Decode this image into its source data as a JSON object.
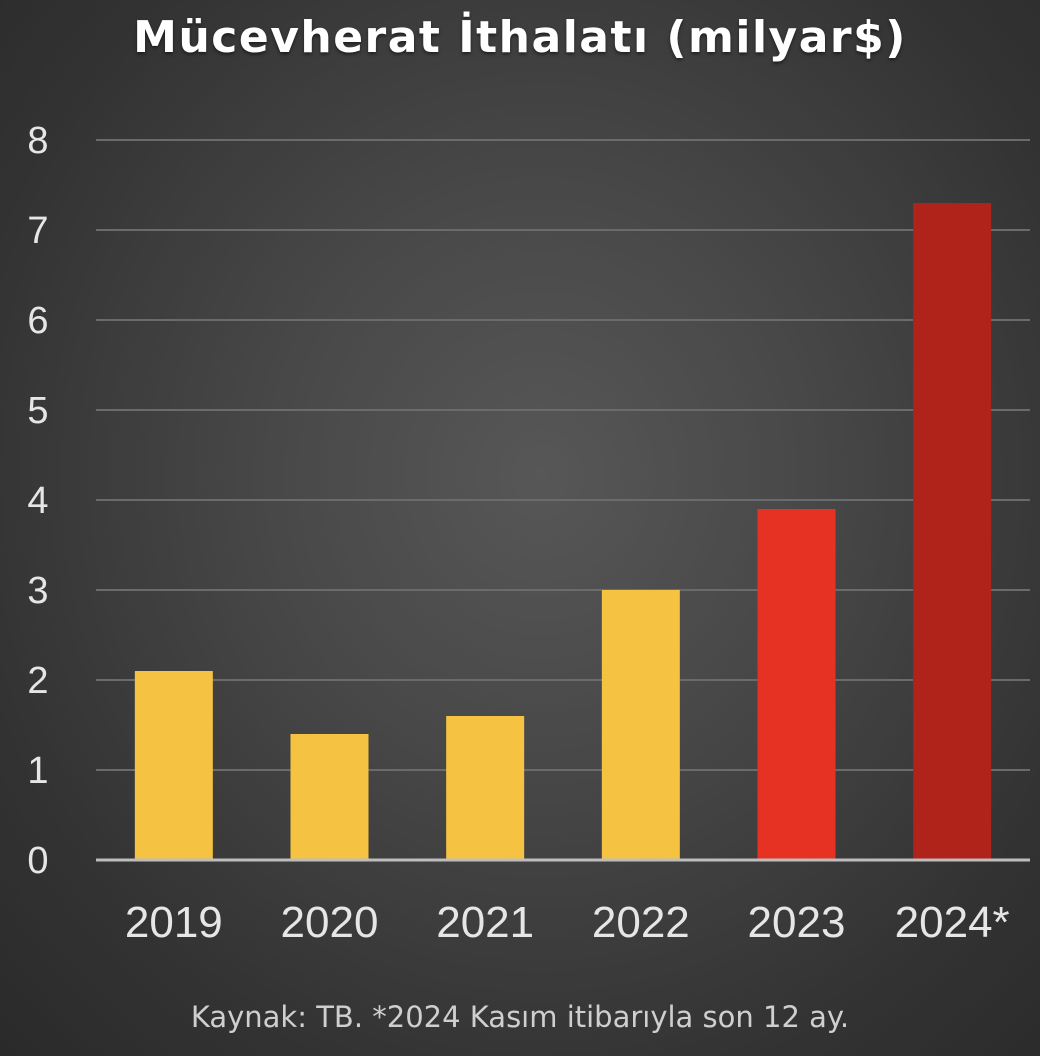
{
  "chart_data": {
    "type": "bar",
    "title": "Mücevherat İthalatı (milyar$)",
    "categories": [
      "2019",
      "2020",
      "2021",
      "2022",
      "2023",
      "2024*"
    ],
    "values": [
      2.1,
      1.4,
      1.6,
      3.0,
      3.9,
      7.3
    ],
    "bar_colors": [
      "#f5c242",
      "#f5c242",
      "#f5c242",
      "#f5c242",
      "#e63222",
      "#b0231a"
    ],
    "ylim": [
      0,
      8
    ],
    "yticks": [
      0,
      1,
      2,
      3,
      4,
      5,
      6,
      7,
      8
    ],
    "grid": true,
    "xlabel": "",
    "ylabel": "",
    "source_note": "Kaynak: TB. *2024 Kasım itibarıyla son 12 ay."
  },
  "colors": {
    "background": "#474747",
    "gridline": "#6b6b6b",
    "axis": "#bdbdbd",
    "text": "#e6e6e6"
  }
}
